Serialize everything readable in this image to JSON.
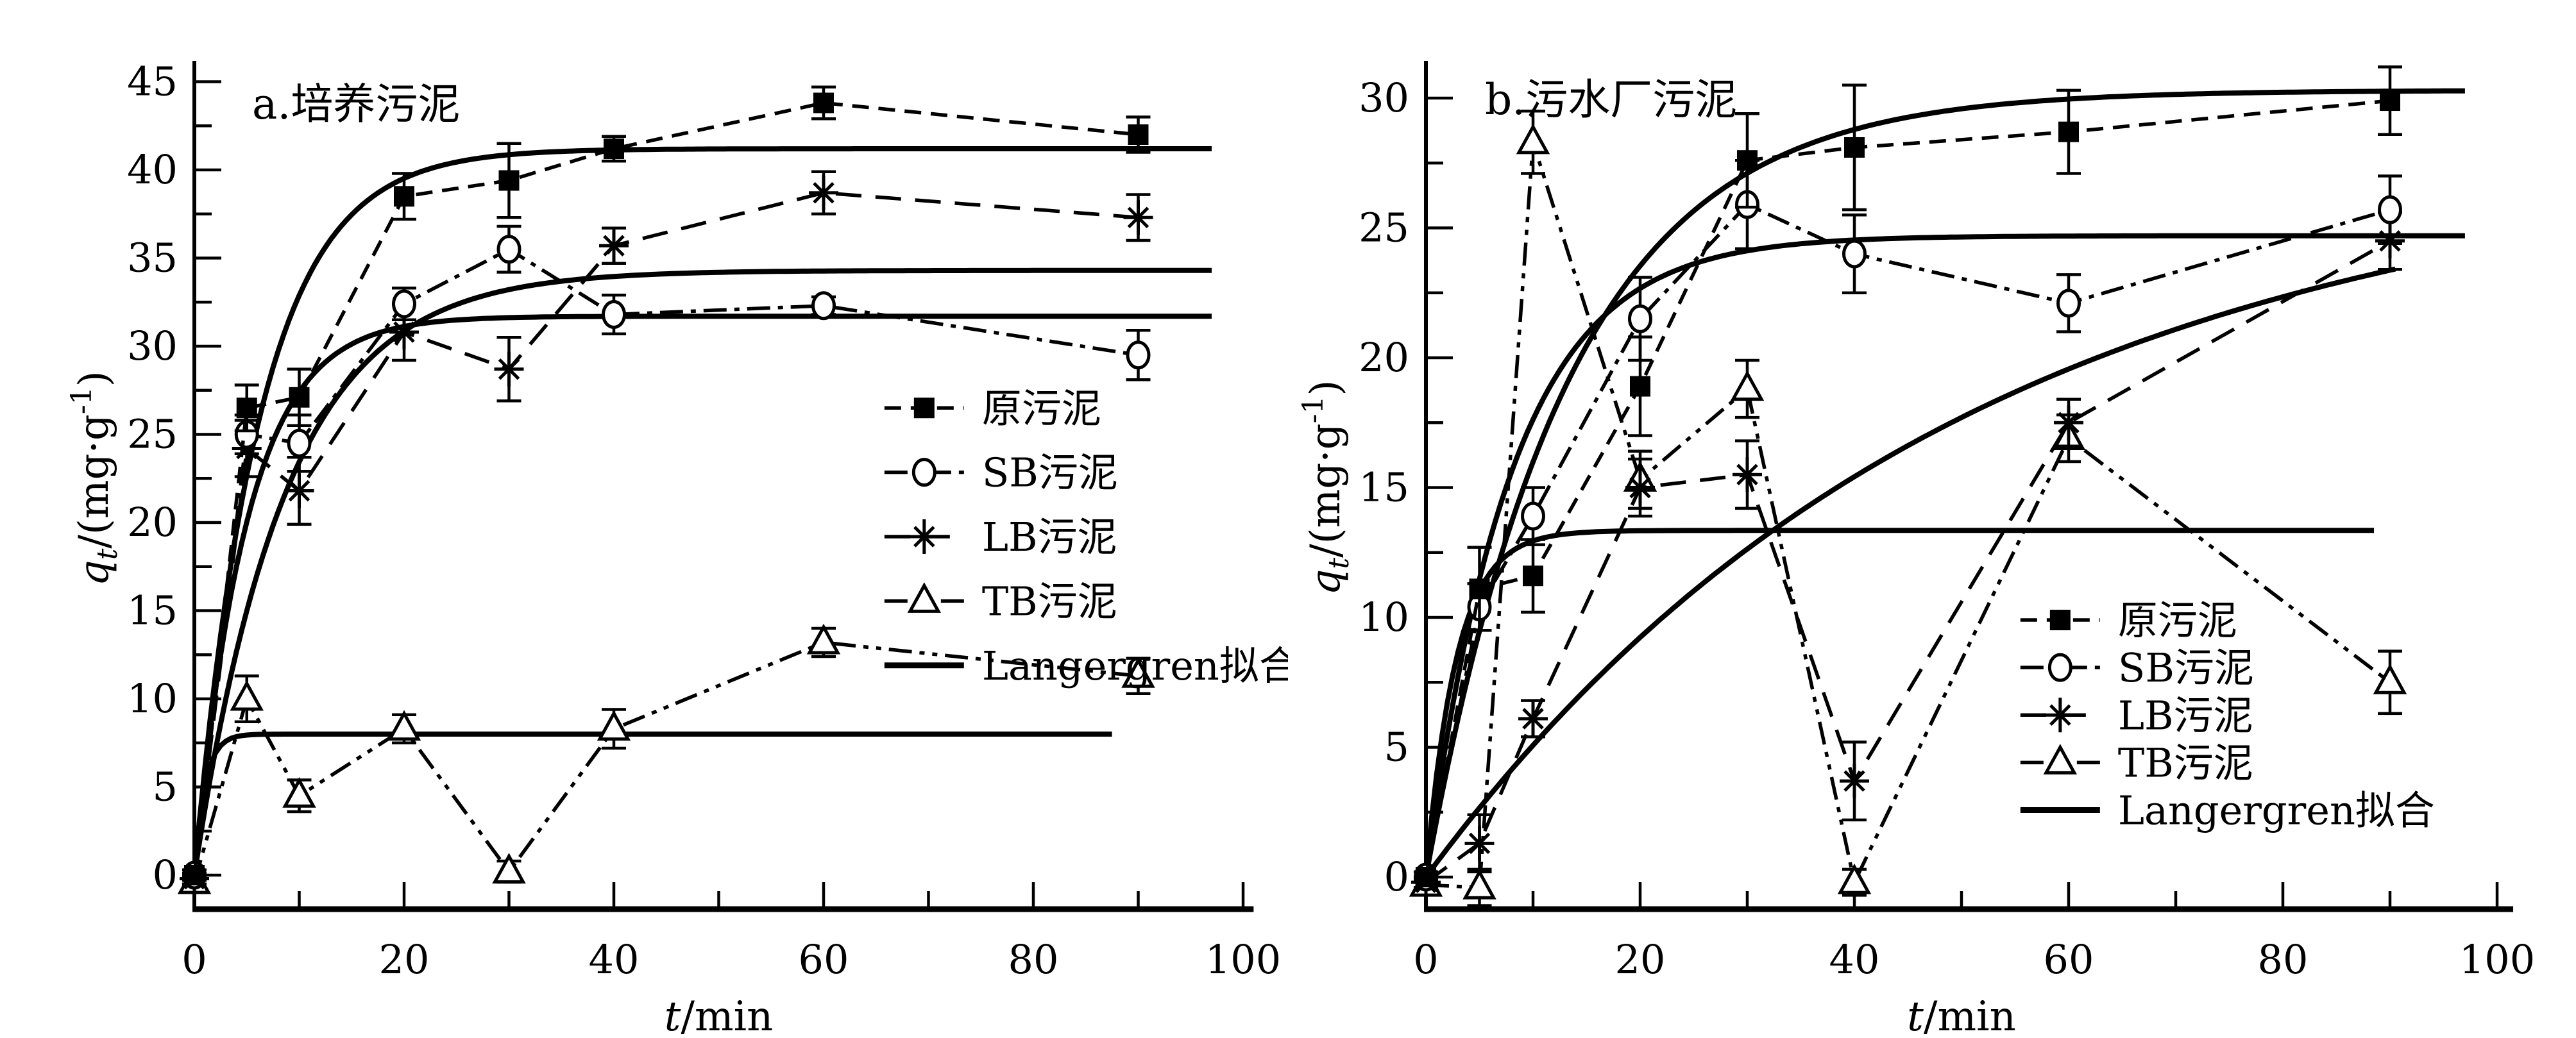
{
  "page": {
    "background": "#ffffff",
    "ink": "#000000"
  },
  "chart_data": [
    {
      "id": "a",
      "type": "line",
      "title": "a.培养污泥",
      "xlabel": {
        "italic": "t",
        "rest": "/min"
      },
      "ylabel": {
        "main": "q",
        "sub": "t",
        "mid": "/(mg·g",
        "sup": "-1",
        "end": ")"
      },
      "xlim": [
        0,
        100
      ],
      "ylim": [
        0,
        45
      ],
      "x_major_ticks": [
        0,
        20,
        40,
        60,
        80,
        100
      ],
      "x_minor_ticks": [
        10,
        30,
        50,
        70,
        90
      ],
      "y_major_ticks": [
        0,
        5,
        10,
        15,
        20,
        25,
        30,
        35,
        40,
        45
      ],
      "y_minor_step": 2.5,
      "grid": false,
      "legend_position": "inside-right",
      "x": [
        0,
        5,
        10,
        20,
        30,
        40,
        60,
        90
      ],
      "series": [
        {
          "key": "raw-sludge",
          "label": "原污泥",
          "marker": "square",
          "dash": "26 15",
          "values": [
            0,
            26.5,
            27.1,
            38.5,
            39.4,
            41.2,
            43.8,
            42.0
          ],
          "errors": [
            0.3,
            1.3,
            1.6,
            1.3,
            2.1,
            0.7,
            0.9,
            1.0
          ]
        },
        {
          "key": "sb-sludge",
          "label": "SB污泥",
          "marker": "circle",
          "dash": "36 12 8 12",
          "values": [
            0,
            25.0,
            24.5,
            32.4,
            35.5,
            31.8,
            32.3,
            29.5
          ],
          "errors": [
            0.3,
            1.1,
            1.6,
            0.9,
            1.3,
            1.1,
            0.5,
            1.4
          ]
        },
        {
          "key": "lb-sludge",
          "label": "LB污泥",
          "marker": "asterisk",
          "dash": "40 22",
          "values": [
            -0.2,
            24.2,
            21.8,
            30.8,
            28.7,
            35.7,
            38.7,
            37.3
          ],
          "errors": [
            0.3,
            1.6,
            1.9,
            1.6,
            1.8,
            1.0,
            1.2,
            1.3
          ]
        },
        {
          "key": "tb-sludge",
          "label": "TB污泥",
          "marker": "triangle",
          "dash": "36 12 8 12 8 12",
          "values": [
            -0.4,
            10.0,
            4.5,
            8.3,
            0.2,
            8.3,
            13.2,
            11.3
          ],
          "errors": [
            0.3,
            1.3,
            0.9,
            0.8,
            0.6,
            1.1,
            0.8,
            1.0
          ]
        }
      ],
      "fit_label": "Langergren拟合",
      "fit_model": "q = qe*(1-exp(-k*t))",
      "fits": [
        {
          "series": "raw-sludge",
          "qe": 41.2,
          "k": 0.16,
          "t_end": 97
        },
        {
          "series": "sb-sludge",
          "qe": 31.7,
          "k": 0.2,
          "t_end": 97
        },
        {
          "series": "lb-sludge",
          "qe": 34.3,
          "k": 0.115,
          "t_end": 97
        },
        {
          "series": "tb-sludge",
          "qe": 8.0,
          "k": 1.0,
          "t_end": 87.5
        }
      ],
      "legend_pos": {
        "t": 65.8,
        "q_top": 26.5,
        "dq": 3.65
      }
    },
    {
      "id": "b",
      "type": "line",
      "title": "b.污水厂污泥",
      "xlabel": {
        "italic": "t",
        "rest": "/min"
      },
      "ylabel": {
        "main": "q",
        "sub": "t",
        "mid": "/(mg·g",
        "sup": "-1",
        "end": ")"
      },
      "xlim": [
        0,
        100
      ],
      "ylim": [
        0,
        30
      ],
      "x_major_ticks": [
        0,
        20,
        40,
        60,
        80,
        100
      ],
      "x_minor_ticks": [
        10,
        30,
        50,
        70,
        90
      ],
      "y_major_ticks": [
        0,
        5,
        10,
        15,
        20,
        25,
        30
      ],
      "y_minor_step": 2.5,
      "grid": false,
      "legend_position": "inside-right",
      "x": [
        0,
        5,
        10,
        20,
        30,
        40,
        60,
        90
      ],
      "series": [
        {
          "key": "raw-sludge",
          "label": "原污泥",
          "marker": "square",
          "dash": "26 15",
          "values": [
            0,
            11.1,
            11.6,
            18.9,
            27.6,
            28.1,
            28.7,
            29.9
          ],
          "errors": [
            0.2,
            1.6,
            1.4,
            1.9,
            1.8,
            2.4,
            1.6,
            1.3
          ]
        },
        {
          "key": "sb-sludge",
          "label": "SB污泥",
          "marker": "circle",
          "dash": "36 12 8 12",
          "values": [
            0,
            10.4,
            13.9,
            21.5,
            25.9,
            24.0,
            22.1,
            25.7
          ],
          "errors": [
            0.2,
            0.9,
            1.1,
            1.6,
            1.7,
            1.5,
            1.1,
            1.3
          ]
        },
        {
          "key": "lb-sludge",
          "label": "LB污泥",
          "marker": "asterisk",
          "dash": "40 22",
          "values": [
            -0.2,
            1.3,
            6.1,
            15.0,
            15.5,
            3.7,
            17.5,
            24.5
          ],
          "errors": [
            0.2,
            1.1,
            0.7,
            1.1,
            1.3,
            1.5,
            0.9,
            1.1
          ]
        },
        {
          "key": "tb-sludge",
          "label": "TB污泥",
          "marker": "triangle",
          "dash": "36 12 8 12 8 12",
          "values": [
            -0.3,
            -0.4,
            28.3,
            15.3,
            18.8,
            -0.2,
            16.9,
            7.5
          ],
          "errors": [
            0.2,
            0.7,
            1.2,
            1.1,
            1.1,
            0.5,
            0.9,
            1.2
          ]
        }
      ],
      "fit_label": "Langergren拟合",
      "fit_model": "q = qe*(1-exp(-k*t))",
      "fits": [
        {
          "series": "raw-sludge",
          "qe": 30.3,
          "k": 0.075,
          "t_end": 97
        },
        {
          "series": "sb-sludge",
          "qe": 24.7,
          "k": 0.125,
          "t_end": 97
        },
        {
          "series": "lb-sludge",
          "qe": 28.0,
          "k": 0.02,
          "t_end": 90.5
        },
        {
          "series": "tb-sludge",
          "qe": 13.35,
          "k": 0.35,
          "t_end": 88.5
        }
      ],
      "legend_pos": {
        "t": 55.5,
        "q_top": 9.9,
        "dq": 1.83
      }
    }
  ]
}
